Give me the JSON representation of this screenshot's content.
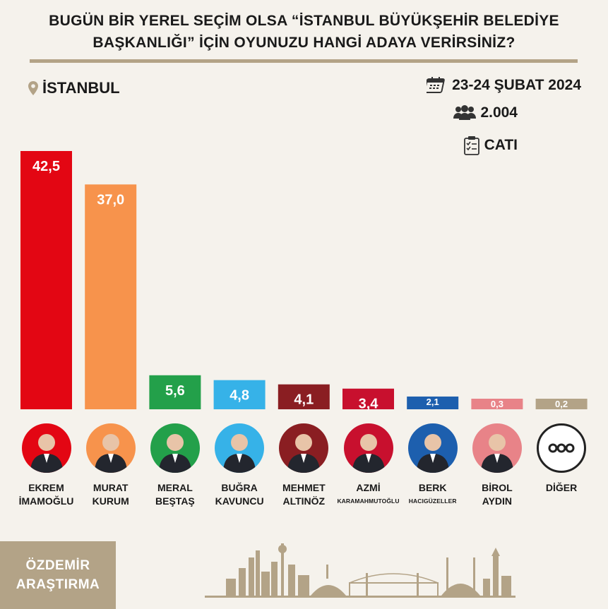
{
  "title_line1": "BUGÜN BİR YEREL SEÇİM OLSA “İSTANBUL BÜYÜKŞEHİR BELEDİYE",
  "title_line2": "BAŞKANLIĞI” İÇİN OYUNUZU HANGİ ADAYA VERİRSİNİZ?",
  "location": "İSTANBUL",
  "date": "23-24 ŞUBAT 2024",
  "sample_size": "2.004",
  "method": "CATI",
  "brand_line1": "ÖZDEMİR",
  "brand_line2": "ARAŞTIRMA",
  "icons": [
    "location-pin-icon",
    "calendar-icon",
    "people-icon",
    "clipboard-icon",
    "more-dots-icon"
  ],
  "chart_data": {
    "type": "bar",
    "title": "BUGÜN BİR YEREL SEÇİM OLSA “İSTANBUL BÜYÜKŞEHİR BELEDİYE BAŞKANLIĞI” İÇİN OYUNUZU HANGİ ADAYA VERİRSİNİZ?",
    "categories": [
      "EKREM İMAMOĞLU",
      "MURAT KURUM",
      "MERAL BEŞTAŞ",
      "BUĞRA KAVUNCU",
      "MEHMET ALTINÖZ",
      "AZMİ KARAMAHMUTOĞLU",
      "BERK HACIGÜZELLER",
      "BİROL AYDIN",
      "DİĞER"
    ],
    "name_lines": [
      [
        "EKREM",
        "İMAMOĞLU"
      ],
      [
        "MURAT",
        "KURUM"
      ],
      [
        "MERAL",
        "BEŞTAŞ"
      ],
      [
        "BUĞRA",
        "KAVUNCU"
      ],
      [
        "MEHMET",
        "ALTINÖZ"
      ],
      [
        "AZMİ",
        "KARAMAHMUTOĞLU"
      ],
      [
        "BERK",
        "HACIGÜZELLER"
      ],
      [
        "BİROL",
        "AYDIN"
      ],
      [
        "DİĞER",
        ""
      ]
    ],
    "values": [
      42.5,
      37.0,
      5.6,
      4.8,
      4.1,
      3.4,
      2.1,
      0.3,
      0.2
    ],
    "value_labels": [
      "42,5",
      "37,0",
      "5,6",
      "4,8",
      "4,1",
      "3,4",
      "2,1",
      "0,3",
      "0,2"
    ],
    "colors": [
      "#e30613",
      "#f7934c",
      "#23a04a",
      "#36b2e8",
      "#8a1e22",
      "#c8102e",
      "#1d5fae",
      "#e88388",
      "#b3a387"
    ],
    "ylim": [
      0,
      42.5
    ],
    "grid": false,
    "legend": "none"
  }
}
